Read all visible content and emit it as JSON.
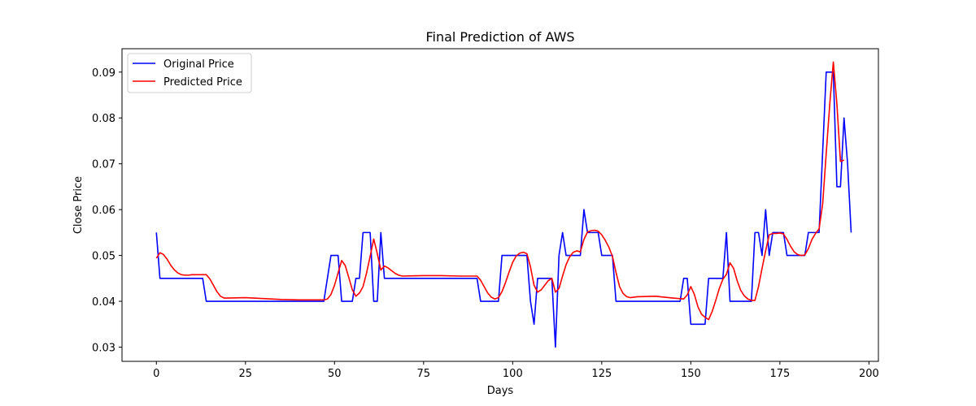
{
  "chart_data": {
    "type": "line",
    "title": "Final Prediction of AWS",
    "xlabel": "Days",
    "ylabel": "Close Price",
    "xlim": [
      -9.65,
      202.65
    ],
    "ylim": [
      0.0269,
      0.0951
    ],
    "xticks": [
      0,
      25,
      50,
      75,
      100,
      125,
      150,
      175,
      200
    ],
    "xtick_labels": [
      "0",
      "25",
      "50",
      "75",
      "100",
      "125",
      "150",
      "175",
      "200"
    ],
    "yticks": [
      0.03,
      0.04,
      0.05,
      0.06,
      0.07,
      0.08,
      0.09
    ],
    "ytick_labels": [
      "0.03",
      "0.04",
      "0.05",
      "0.06",
      "0.07",
      "0.08",
      "0.09"
    ],
    "grid": false,
    "legend_position": "top-left",
    "series": [
      {
        "name": "Original Price",
        "color": "#0000ff",
        "points": [
          [
            0,
            0.055
          ],
          [
            1,
            0.045
          ],
          [
            13,
            0.045
          ],
          [
            14,
            0.04
          ],
          [
            47,
            0.04
          ],
          [
            49,
            0.05
          ],
          [
            51,
            0.05
          ],
          [
            52,
            0.04
          ],
          [
            55,
            0.04
          ],
          [
            56,
            0.045
          ],
          [
            57,
            0.045
          ],
          [
            58,
            0.055
          ],
          [
            60,
            0.055
          ],
          [
            61,
            0.04
          ],
          [
            62,
            0.04
          ],
          [
            63,
            0.055
          ],
          [
            64,
            0.045
          ],
          [
            90,
            0.045
          ],
          [
            91,
            0.04
          ],
          [
            96,
            0.04
          ],
          [
            97,
            0.05
          ],
          [
            104,
            0.05
          ],
          [
            105,
            0.04
          ],
          [
            106,
            0.035
          ],
          [
            107,
            0.045
          ],
          [
            111,
            0.045
          ],
          [
            112,
            0.03
          ],
          [
            113,
            0.05
          ],
          [
            114,
            0.055
          ],
          [
            115,
            0.05
          ],
          [
            119,
            0.05
          ],
          [
            120,
            0.06
          ],
          [
            121,
            0.055
          ],
          [
            124,
            0.055
          ],
          [
            125,
            0.05
          ],
          [
            128,
            0.05
          ],
          [
            129,
            0.04
          ],
          [
            147,
            0.04
          ],
          [
            148,
            0.045
          ],
          [
            149,
            0.045
          ],
          [
            150,
            0.035
          ],
          [
            154,
            0.035
          ],
          [
            155,
            0.045
          ],
          [
            159,
            0.045
          ],
          [
            160,
            0.055
          ],
          [
            161,
            0.04
          ],
          [
            167,
            0.04
          ],
          [
            168,
            0.055
          ],
          [
            169,
            0.055
          ],
          [
            170,
            0.05
          ],
          [
            171,
            0.06
          ],
          [
            172,
            0.05
          ],
          [
            173,
            0.055
          ],
          [
            176,
            0.055
          ],
          [
            177,
            0.05
          ],
          [
            182,
            0.05
          ],
          [
            183,
            0.055
          ],
          [
            186,
            0.055
          ],
          [
            188,
            0.09
          ],
          [
            190,
            0.09
          ],
          [
            191,
            0.065
          ],
          [
            192,
            0.065
          ],
          [
            193,
            0.08
          ],
          [
            194,
            0.07
          ],
          [
            195,
            0.055
          ]
        ]
      },
      {
        "name": "Predicted Price",
        "color": "#ff0000",
        "points": [
          [
            0,
            0.0494
          ],
          [
            1,
            0.0506
          ],
          [
            2,
            0.0502
          ],
          [
            3,
            0.0492
          ],
          [
            4,
            0.0479
          ],
          [
            5,
            0.0469
          ],
          [
            6,
            0.0462
          ],
          [
            7,
            0.0458
          ],
          [
            8,
            0.0457
          ],
          [
            9,
            0.0457
          ],
          [
            10,
            0.0458
          ],
          [
            11,
            0.0458
          ],
          [
            12,
            0.0458
          ],
          [
            13,
            0.0458
          ],
          [
            14,
            0.0458
          ],
          [
            15,
            0.0449
          ],
          [
            16,
            0.0435
          ],
          [
            17,
            0.0421
          ],
          [
            18,
            0.0411
          ],
          [
            19,
            0.0407
          ],
          [
            20,
            0.0407
          ],
          [
            25,
            0.0408
          ],
          [
            30,
            0.0406
          ],
          [
            35,
            0.0404
          ],
          [
            40,
            0.0403
          ],
          [
            45,
            0.0403
          ],
          [
            47,
            0.0403
          ],
          [
            48,
            0.0405
          ],
          [
            49,
            0.0415
          ],
          [
            50,
            0.0435
          ],
          [
            51,
            0.0462
          ],
          [
            52,
            0.0489
          ],
          [
            53,
            0.0478
          ],
          [
            54,
            0.0452
          ],
          [
            55,
            0.0425
          ],
          [
            56,
            0.0411
          ],
          [
            57,
            0.0418
          ],
          [
            58,
            0.0432
          ],
          [
            59,
            0.0462
          ],
          [
            60,
            0.0498
          ],
          [
            61,
            0.0536
          ],
          [
            62,
            0.0504
          ],
          [
            63,
            0.0468
          ],
          [
            64,
            0.0477
          ],
          [
            65,
            0.0473
          ],
          [
            66,
            0.0467
          ],
          [
            67,
            0.0461
          ],
          [
            68,
            0.0457
          ],
          [
            69,
            0.0455
          ],
          [
            75,
            0.0456
          ],
          [
            80,
            0.0456
          ],
          [
            85,
            0.0455
          ],
          [
            90,
            0.0455
          ],
          [
            91,
            0.0446
          ],
          [
            92,
            0.0432
          ],
          [
            93,
            0.0418
          ],
          [
            94,
            0.0409
          ],
          [
            95,
            0.0405
          ],
          [
            96,
            0.0408
          ],
          [
            97,
            0.0421
          ],
          [
            98,
            0.0441
          ],
          [
            99,
            0.0464
          ],
          [
            100,
            0.0485
          ],
          [
            101,
            0.0499
          ],
          [
            102,
            0.0505
          ],
          [
            103,
            0.0507
          ],
          [
            104,
            0.0504
          ],
          [
            105,
            0.0475
          ],
          [
            106,
            0.0435
          ],
          [
            107,
            0.042
          ],
          [
            108,
            0.0425
          ],
          [
            109,
            0.0435
          ],
          [
            110,
            0.0445
          ],
          [
            111,
            0.045
          ],
          [
            112,
            0.042
          ],
          [
            113,
            0.0428
          ],
          [
            114,
            0.0455
          ],
          [
            115,
            0.048
          ],
          [
            116,
            0.0497
          ],
          [
            117,
            0.0507
          ],
          [
            118,
            0.051
          ],
          [
            119,
            0.0508
          ],
          [
            120,
            0.0535
          ],
          [
            121,
            0.0551
          ],
          [
            122,
            0.0554
          ],
          [
            123,
            0.0555
          ],
          [
            124,
            0.0553
          ],
          [
            125,
            0.0545
          ],
          [
            126,
            0.0533
          ],
          [
            127,
            0.0518
          ],
          [
            128,
            0.0498
          ],
          [
            129,
            0.0463
          ],
          [
            130,
            0.0432
          ],
          [
            131,
            0.0417
          ],
          [
            132,
            0.041
          ],
          [
            133,
            0.0408
          ],
          [
            135,
            0.041
          ],
          [
            140,
            0.0411
          ],
          [
            145,
            0.0407
          ],
          [
            148,
            0.0405
          ],
          [
            149,
            0.0414
          ],
          [
            150,
            0.0432
          ],
          [
            151,
            0.0415
          ],
          [
            152,
            0.0388
          ],
          [
            153,
            0.0372
          ],
          [
            154,
            0.0365
          ],
          [
            155,
            0.036
          ],
          [
            156,
            0.0378
          ],
          [
            157,
            0.0402
          ],
          [
            158,
            0.0428
          ],
          [
            159,
            0.0448
          ],
          [
            160,
            0.0459
          ],
          [
            161,
            0.0484
          ],
          [
            162,
            0.0472
          ],
          [
            163,
            0.0445
          ],
          [
            164,
            0.0424
          ],
          [
            165,
            0.0412
          ],
          [
            166,
            0.0405
          ],
          [
            167,
            0.0402
          ],
          [
            168,
            0.0402
          ],
          [
            169,
            0.0432
          ],
          [
            170,
            0.0472
          ],
          [
            171,
            0.051
          ],
          [
            172,
            0.0545
          ],
          [
            173,
            0.0548
          ],
          [
            174,
            0.0548
          ],
          [
            175,
            0.0549
          ],
          [
            176,
            0.0547
          ],
          [
            177,
            0.0535
          ],
          [
            178,
            0.052
          ],
          [
            179,
            0.0508
          ],
          [
            180,
            0.0502
          ],
          [
            181,
            0.05
          ],
          [
            182,
            0.0501
          ],
          [
            183,
            0.0515
          ],
          [
            184,
            0.0535
          ],
          [
            185,
            0.0548
          ],
          [
            186,
            0.0558
          ],
          [
            187,
            0.0612
          ],
          [
            188,
            0.0722
          ],
          [
            189,
            0.083
          ],
          [
            190,
            0.0922
          ],
          [
            191,
            0.083
          ],
          [
            192,
            0.0705
          ],
          [
            193,
            0.0708
          ]
        ]
      }
    ]
  }
}
